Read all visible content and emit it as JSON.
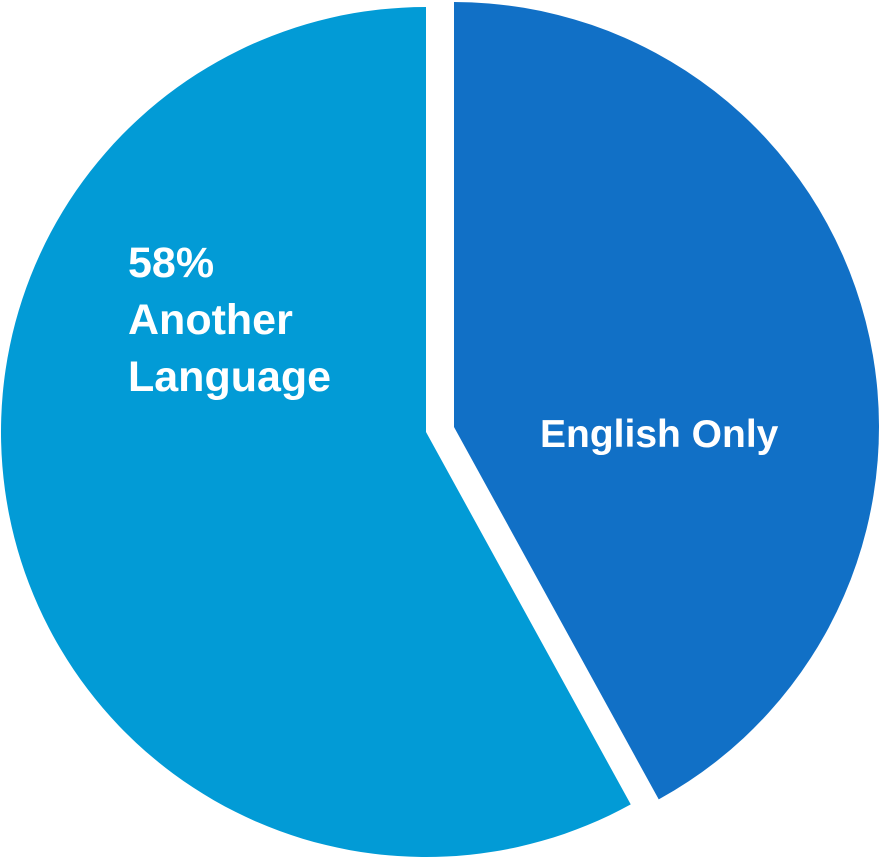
{
  "chart_data": {
    "type": "pie",
    "title": "",
    "slices": [
      {
        "name": "English Only",
        "value": 42,
        "color": "#1170c6",
        "label_lines": [
          "English Only"
        ]
      },
      {
        "name": "Another Language",
        "value": 58,
        "color": "#029bd6",
        "label_lines": [
          "58%",
          "Another",
          "Language"
        ]
      }
    ],
    "start_angle_deg": 0,
    "direction": "clockwise",
    "exploded_slice": "English Only",
    "legend": "none"
  }
}
